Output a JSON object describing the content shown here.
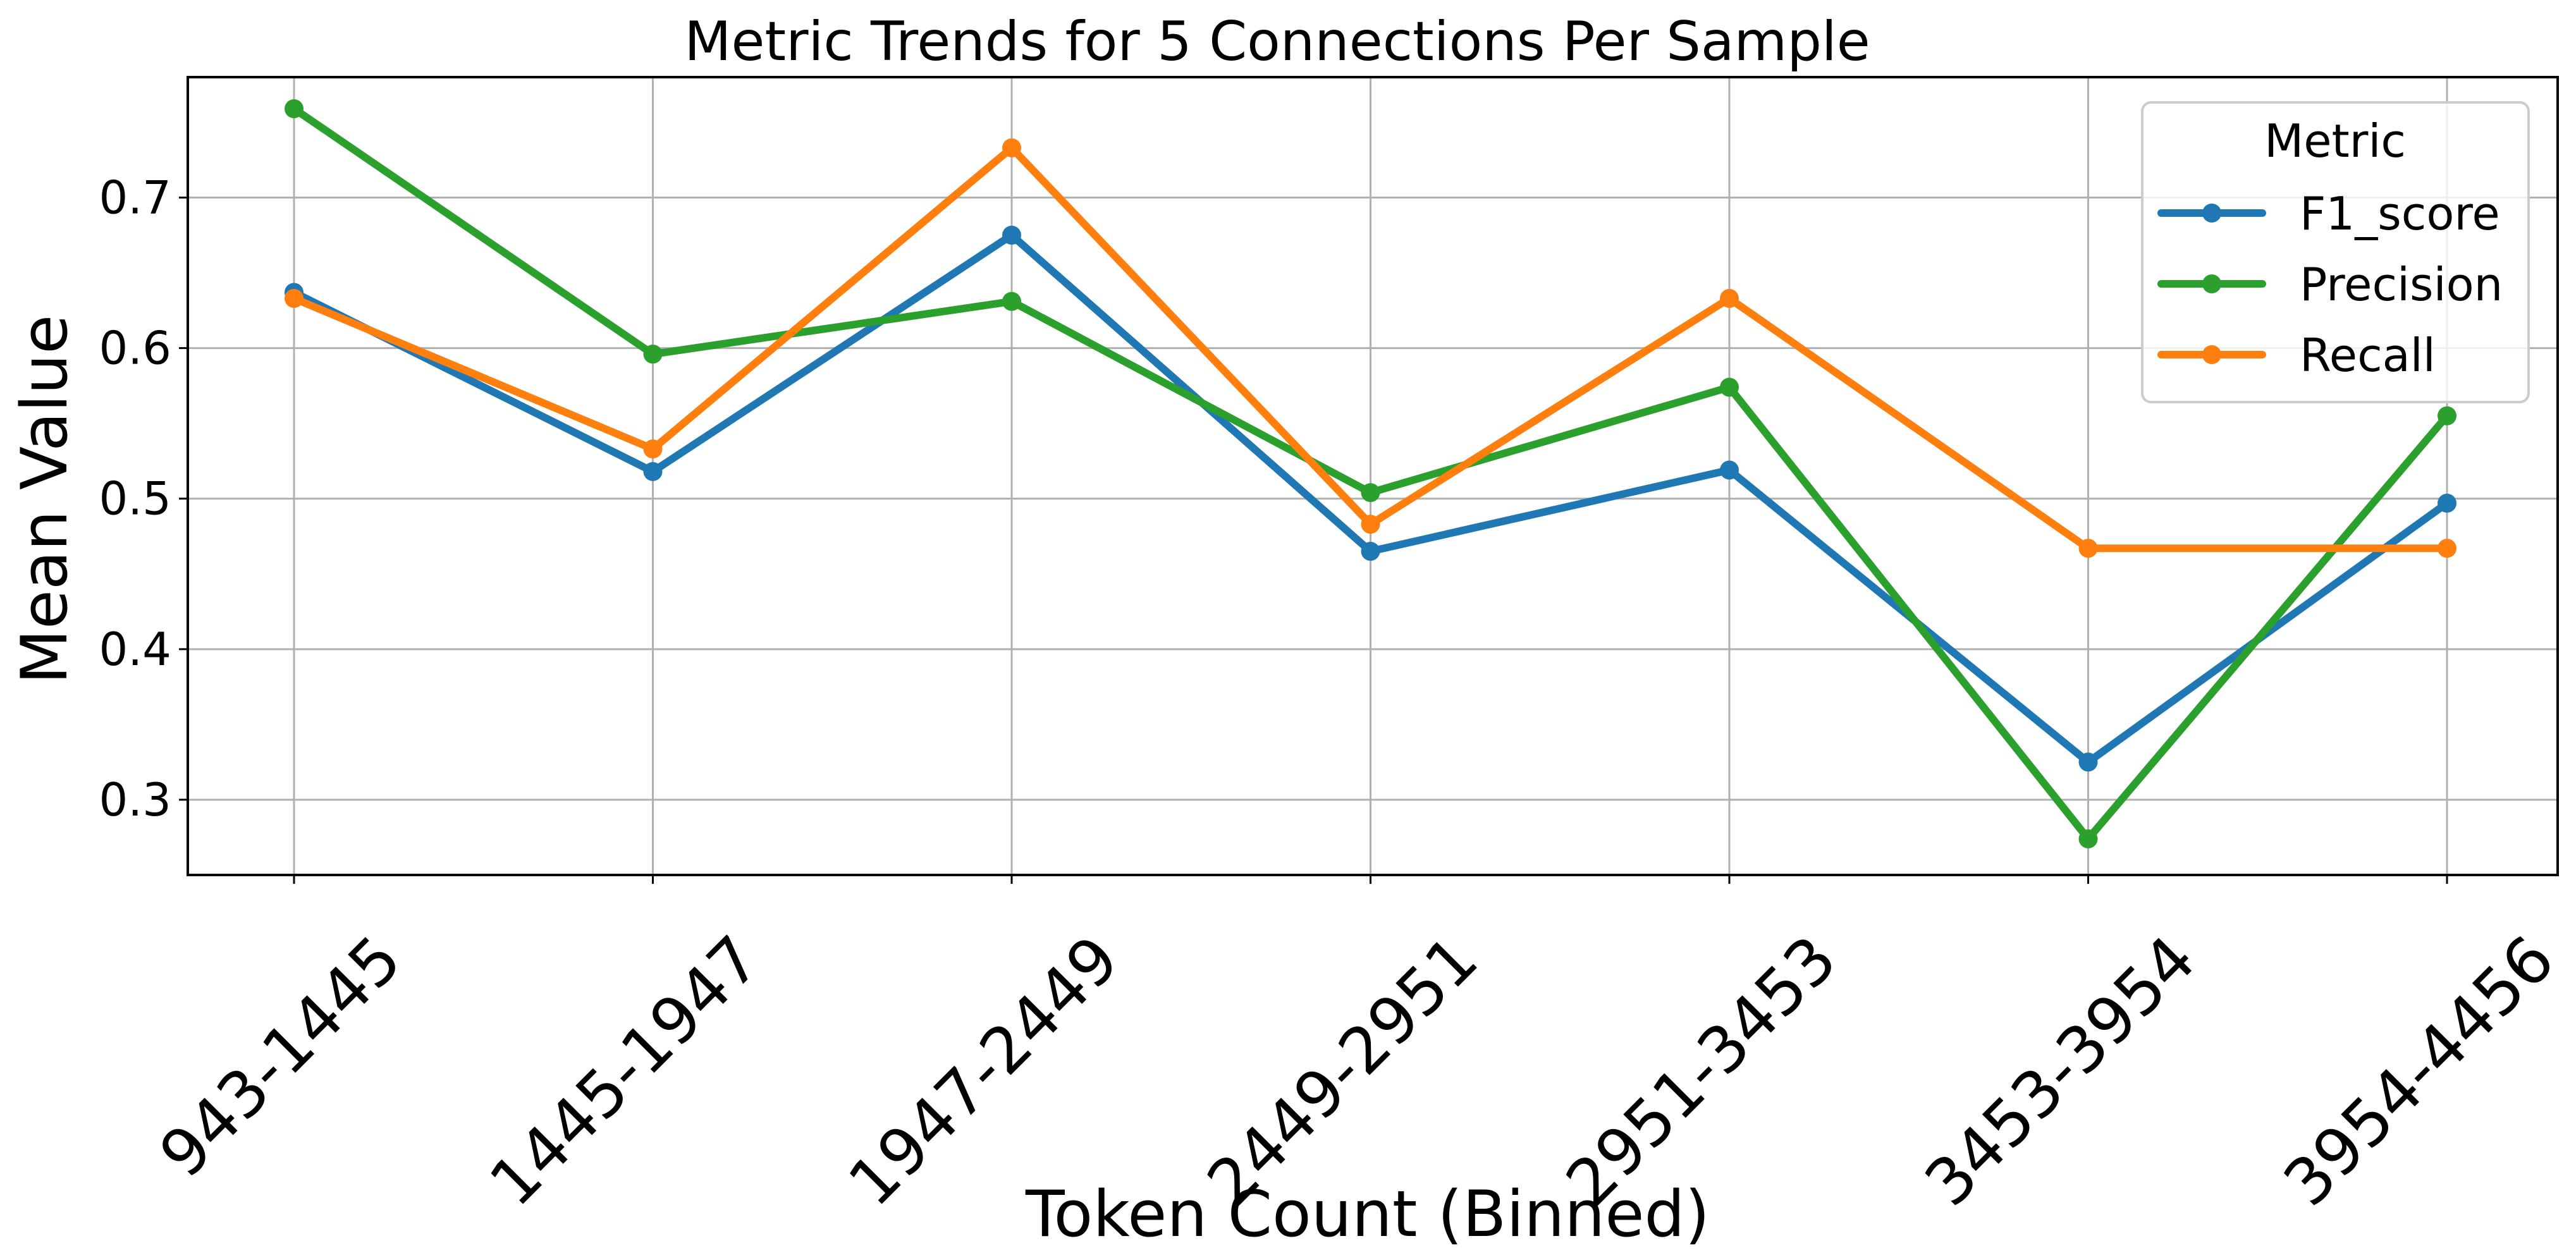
{
  "chart_data": {
    "type": "line",
    "title": "Metric Trends for 5 Connections Per Sample",
    "xlabel": "Token Count (Binned)",
    "ylabel": "Mean Value",
    "categories": [
      "943-1445",
      "1445-1947",
      "1947-2449",
      "2449-2951",
      "2951-3453",
      "3453-3954",
      "3954-4456"
    ],
    "ylim": [
      0.25,
      0.78
    ],
    "yticks": [
      0.3,
      0.4,
      0.5,
      0.6,
      0.7
    ],
    "ytick_labels": [
      "0.3",
      "0.4",
      "0.5",
      "0.6",
      "0.7"
    ],
    "grid": true,
    "legend": {
      "title": "Metric",
      "placement": "top-right"
    },
    "series": [
      {
        "name": "F1_score",
        "color": "#1f77b4",
        "values": [
          0.637,
          0.518,
          0.675,
          0.465,
          0.519,
          0.325,
          0.497
        ]
      },
      {
        "name": "Precision",
        "color": "#2ca02c",
        "values": [
          0.759,
          0.596,
          0.631,
          0.504,
          0.574,
          0.274,
          0.555
        ]
      },
      {
        "name": "Recall",
        "color": "#ff7f0e",
        "values": [
          0.633,
          0.533,
          0.733,
          0.483,
          0.633,
          0.467,
          0.467
        ]
      }
    ]
  }
}
